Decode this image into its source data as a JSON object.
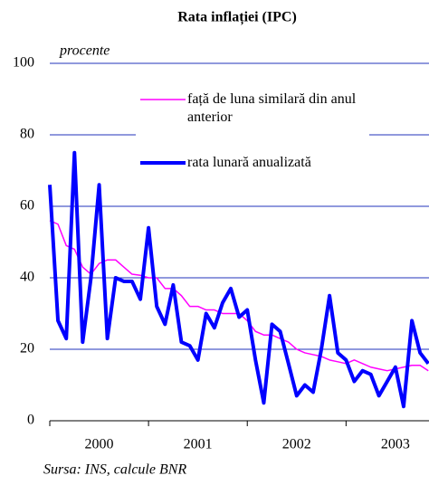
{
  "chart_data": {
    "type": "line",
    "title": "Rata inflației (IPC)",
    "y_label": "procente",
    "source": "Sursa: INS, calcule BNR",
    "x": [
      2000,
      2000.083,
      2000.167,
      2000.25,
      2000.333,
      2000.417,
      2000.5,
      2000.583,
      2000.667,
      2000.75,
      2000.833,
      2000.917,
      2001,
      2001.083,
      2001.167,
      2001.25,
      2001.333,
      2001.417,
      2001.5,
      2001.583,
      2001.667,
      2001.75,
      2001.833,
      2001.917,
      2002,
      2002.083,
      2002.167,
      2002.25,
      2002.333,
      2002.417,
      2002.5,
      2002.583,
      2002.667,
      2002.75,
      2002.833,
      2002.917,
      2003,
      2003.083,
      2003.167,
      2003.25,
      2003.333,
      2003.417,
      2003.5,
      2003.583,
      2003.667,
      2003.75,
      2003.833
    ],
    "series": [
      {
        "name": "față de luna similară din anul anterior",
        "color": "#ff00ff",
        "width": 1.5,
        "values": [
          56,
          55,
          49,
          48,
          43,
          41,
          44,
          45,
          45,
          43,
          41,
          40.7,
          40,
          40,
          37,
          37,
          35,
          32,
          32,
          31,
          31,
          30,
          30,
          30,
          28,
          25,
          24,
          24,
          23,
          22,
          20,
          19,
          18.5,
          18,
          17,
          16.5,
          16,
          17,
          16,
          15,
          14.5,
          14,
          14.5,
          15,
          15.5,
          15.5,
          14
        ]
      },
      {
        "name": "rata lunară anualizată",
        "color": "#0000ff",
        "width": 4,
        "values": [
          66,
          28,
          23,
          75,
          22,
          40,
          66,
          23,
          40,
          39,
          39,
          34,
          54,
          32,
          27,
          38,
          22,
          21,
          17,
          30,
          26,
          33,
          37,
          29,
          31,
          17,
          5,
          27,
          25,
          16,
          7,
          10,
          8,
          20,
          35,
          19,
          17,
          11,
          14,
          13,
          7,
          11,
          15,
          4,
          28,
          19,
          16
        ]
      }
    ],
    "xlim": [
      2000,
      2003.84
    ],
    "xticks": [
      2000,
      2001,
      2002,
      2003
    ],
    "ylim": [
      0,
      100
    ],
    "yticks": [
      0,
      20,
      40,
      60,
      80,
      100
    ],
    "grid": true
  }
}
